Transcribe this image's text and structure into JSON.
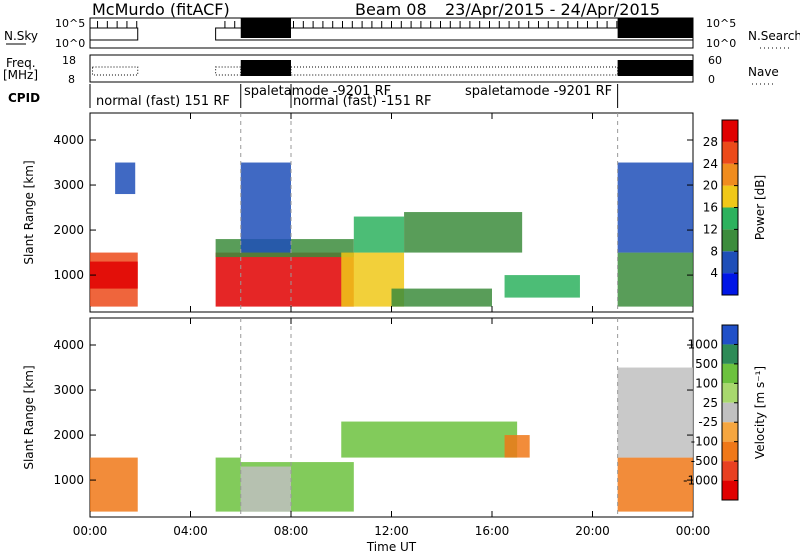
{
  "header": {
    "station": "McMurdo (fitACF)",
    "beam": "Beam 08",
    "date_range": "23/Apr/2015 - 24/Apr/2015"
  },
  "nsky_panel": {
    "left_label": "N.Sky",
    "right_label": "N.Search",
    "left_ticks": [
      "10^5",
      "10^0"
    ],
    "right_ticks": [
      "10^5",
      "10^0"
    ]
  },
  "freq_panel": {
    "left_label_line1": "Freq.",
    "left_label_line2": "[MHz]",
    "right_label": "Nave",
    "left_ticks": [
      "18",
      "8"
    ],
    "right_ticks": [
      "60",
      "0"
    ]
  },
  "cpid": {
    "label": "CPID",
    "segments": [
      "normal (fast) 151 RF",
      "spaletamode -9201 RF",
      "normal (fast) -151 RF",
      "spaletamode -9201 RF"
    ]
  },
  "chart_data": [
    {
      "type": "heatmap",
      "title": "Power",
      "xlabel": "",
      "ylabel": "Slant Range [km]",
      "xlim": [
        0,
        24
      ],
      "ylim": [
        180,
        4600
      ],
      "x_ticks": [
        "00:00",
        "04:00",
        "08:00",
        "12:00",
        "16:00",
        "20:00",
        "00:00"
      ],
      "y_ticks": [
        1000,
        2000,
        3000,
        4000
      ],
      "colorbar": {
        "label": "Power [dB]",
        "ticks": [
          4,
          8,
          12,
          16,
          20,
          24,
          28
        ],
        "range": [
          0,
          32
        ],
        "colors": [
          "#0016e6",
          "#1f4fb8",
          "#3c8c3c",
          "#2db25e",
          "#f0c818",
          "#f08c1e",
          "#ec4a1a",
          "#e00000"
        ]
      },
      "echo_regions": [
        {
          "t": [
            0.0,
            1.9
          ],
          "r": [
            300,
            1500
          ],
          "power": 24
        },
        {
          "t": [
            0.0,
            1.9
          ],
          "r": [
            700,
            1300
          ],
          "power": 30
        },
        {
          "t": [
            1.0,
            1.8
          ],
          "r": [
            2800,
            3500
          ],
          "power": 6
        },
        {
          "t": [
            5.0,
            10.5
          ],
          "r": [
            300,
            1500
          ],
          "power": 30
        },
        {
          "t": [
            5.0,
            10.5
          ],
          "r": [
            1400,
            1800
          ],
          "power": 10
        },
        {
          "t": [
            6.0,
            8.0
          ],
          "r": [
            1500,
            3500
          ],
          "power": 4
        },
        {
          "t": [
            10.0,
            12.5
          ],
          "r": [
            300,
            1500
          ],
          "power": 18
        },
        {
          "t": [
            10.5,
            12.5
          ],
          "r": [
            1500,
            2300
          ],
          "power": 12
        },
        {
          "t": [
            12.5,
            17.2
          ],
          "r": [
            1500,
            2400
          ],
          "power": 11
        },
        {
          "t": [
            12.0,
            16.0
          ],
          "r": [
            300,
            700
          ],
          "power": 10
        },
        {
          "t": [
            16.5,
            19.5
          ],
          "r": [
            500,
            1000
          ],
          "power": 14
        },
        {
          "t": [
            21.0,
            24.0
          ],
          "r": [
            300,
            1500
          ],
          "power": 8
        },
        {
          "t": [
            21.0,
            24.0
          ],
          "r": [
            1500,
            3500
          ],
          "power": 5
        }
      ]
    },
    {
      "type": "heatmap",
      "title": "Velocity",
      "xlabel": "Time UT",
      "ylabel": "Slant Range [km]",
      "xlim": [
        0,
        24
      ],
      "ylim": [
        180,
        4600
      ],
      "x_ticks": [
        "00:00",
        "04:00",
        "08:00",
        "12:00",
        "16:00",
        "20:00",
        "00:00"
      ],
      "y_ticks": [
        1000,
        2000,
        3000,
        4000
      ],
      "colorbar": {
        "label": "Velocity [m s⁻¹]",
        "ticks": [
          "1000",
          "500",
          "100",
          "25",
          "-25",
          "-100",
          "-500",
          "-1000"
        ],
        "colors": [
          "#2050c8",
          "#2e8b57",
          "#6cc23e",
          "#a8d86e",
          "#c0c0c0",
          "#f5a640",
          "#f07818",
          "#e84020",
          "#e00000"
        ]
      },
      "echo_regions": [
        {
          "t": [
            0.0,
            1.9
          ],
          "r": [
            300,
            1500
          ],
          "velocity": -150
        },
        {
          "t": [
            5.0,
            6.0
          ],
          "r": [
            300,
            1500
          ],
          "velocity": 100
        },
        {
          "t": [
            6.0,
            10.5
          ],
          "r": [
            300,
            1400
          ],
          "velocity": 150
        },
        {
          "t": [
            6.0,
            8.0
          ],
          "r": [
            300,
            1300
          ],
          "velocity": 0
        },
        {
          "t": [
            10.0,
            17.0
          ],
          "r": [
            1500,
            2300
          ],
          "velocity": 150
        },
        {
          "t": [
            16.5,
            17.5
          ],
          "r": [
            1500,
            2000
          ],
          "velocity": -150
        },
        {
          "t": [
            21.0,
            24.0
          ],
          "r": [
            300,
            1500
          ],
          "velocity": -200
        },
        {
          "t": [
            21.0,
            24.0
          ],
          "r": [
            1500,
            3500
          ],
          "velocity": 20
        }
      ]
    }
  ]
}
